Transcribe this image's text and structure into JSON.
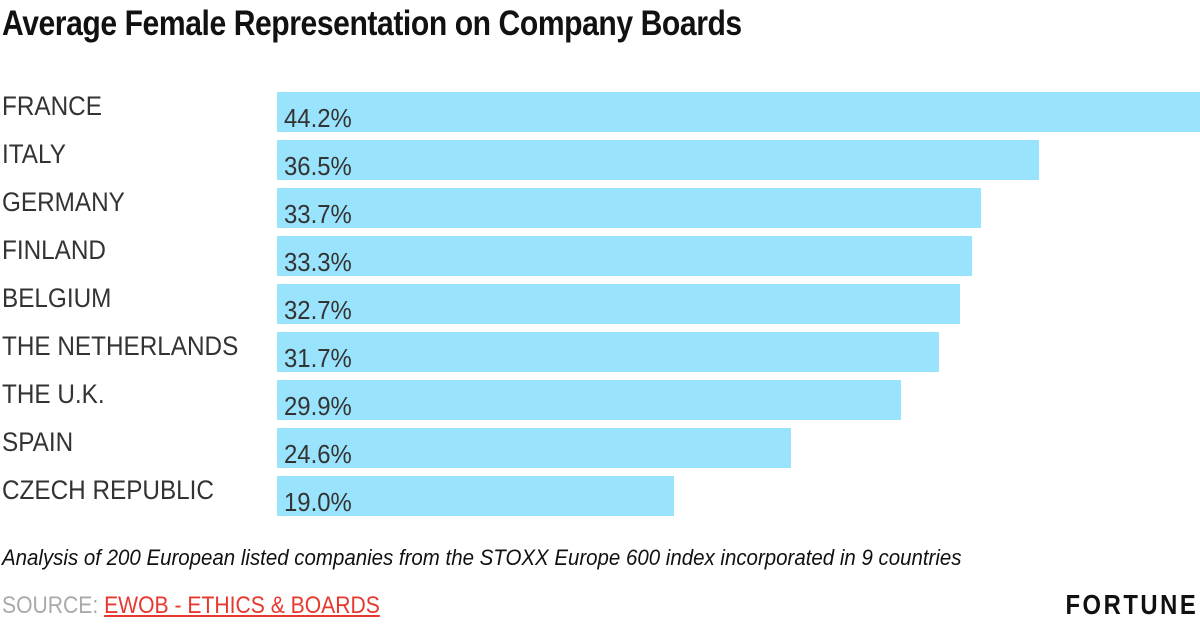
{
  "chart_data": {
    "type": "bar",
    "orientation": "horizontal",
    "title": "Average Female Representation on Company Boards",
    "categories": [
      "FRANCE",
      "ITALY",
      "GERMANY",
      "FINLAND",
      "BELGIUM",
      "THE NETHERLANDS",
      "THE U.K.",
      "SPAIN",
      "CZECH REPUBLIC"
    ],
    "values": [
      44.2,
      36.5,
      33.7,
      33.3,
      32.7,
      31.7,
      29.9,
      24.6,
      19.0
    ],
    "value_labels": [
      "44.2%",
      "36.5%",
      "33.7%",
      "33.3%",
      "32.7%",
      "31.7%",
      "29.9%",
      "24.6%",
      "19.0%"
    ],
    "xlabel": "",
    "ylabel": "",
    "xlim": [
      0,
      44.2
    ],
    "grid": false,
    "bar_color": "#99e4fc"
  },
  "footer": {
    "note": "Analysis of 200 European listed companies from the STOXX Europe 600 index incorporated in 9 countries",
    "source_label": "SOURCE: ",
    "source_link": "EWOB - ETHICS & BOARDS",
    "logo": "FORTUNE"
  },
  "colors": {
    "source_label": "#aaaaaa",
    "source_link": "#e8382d"
  }
}
